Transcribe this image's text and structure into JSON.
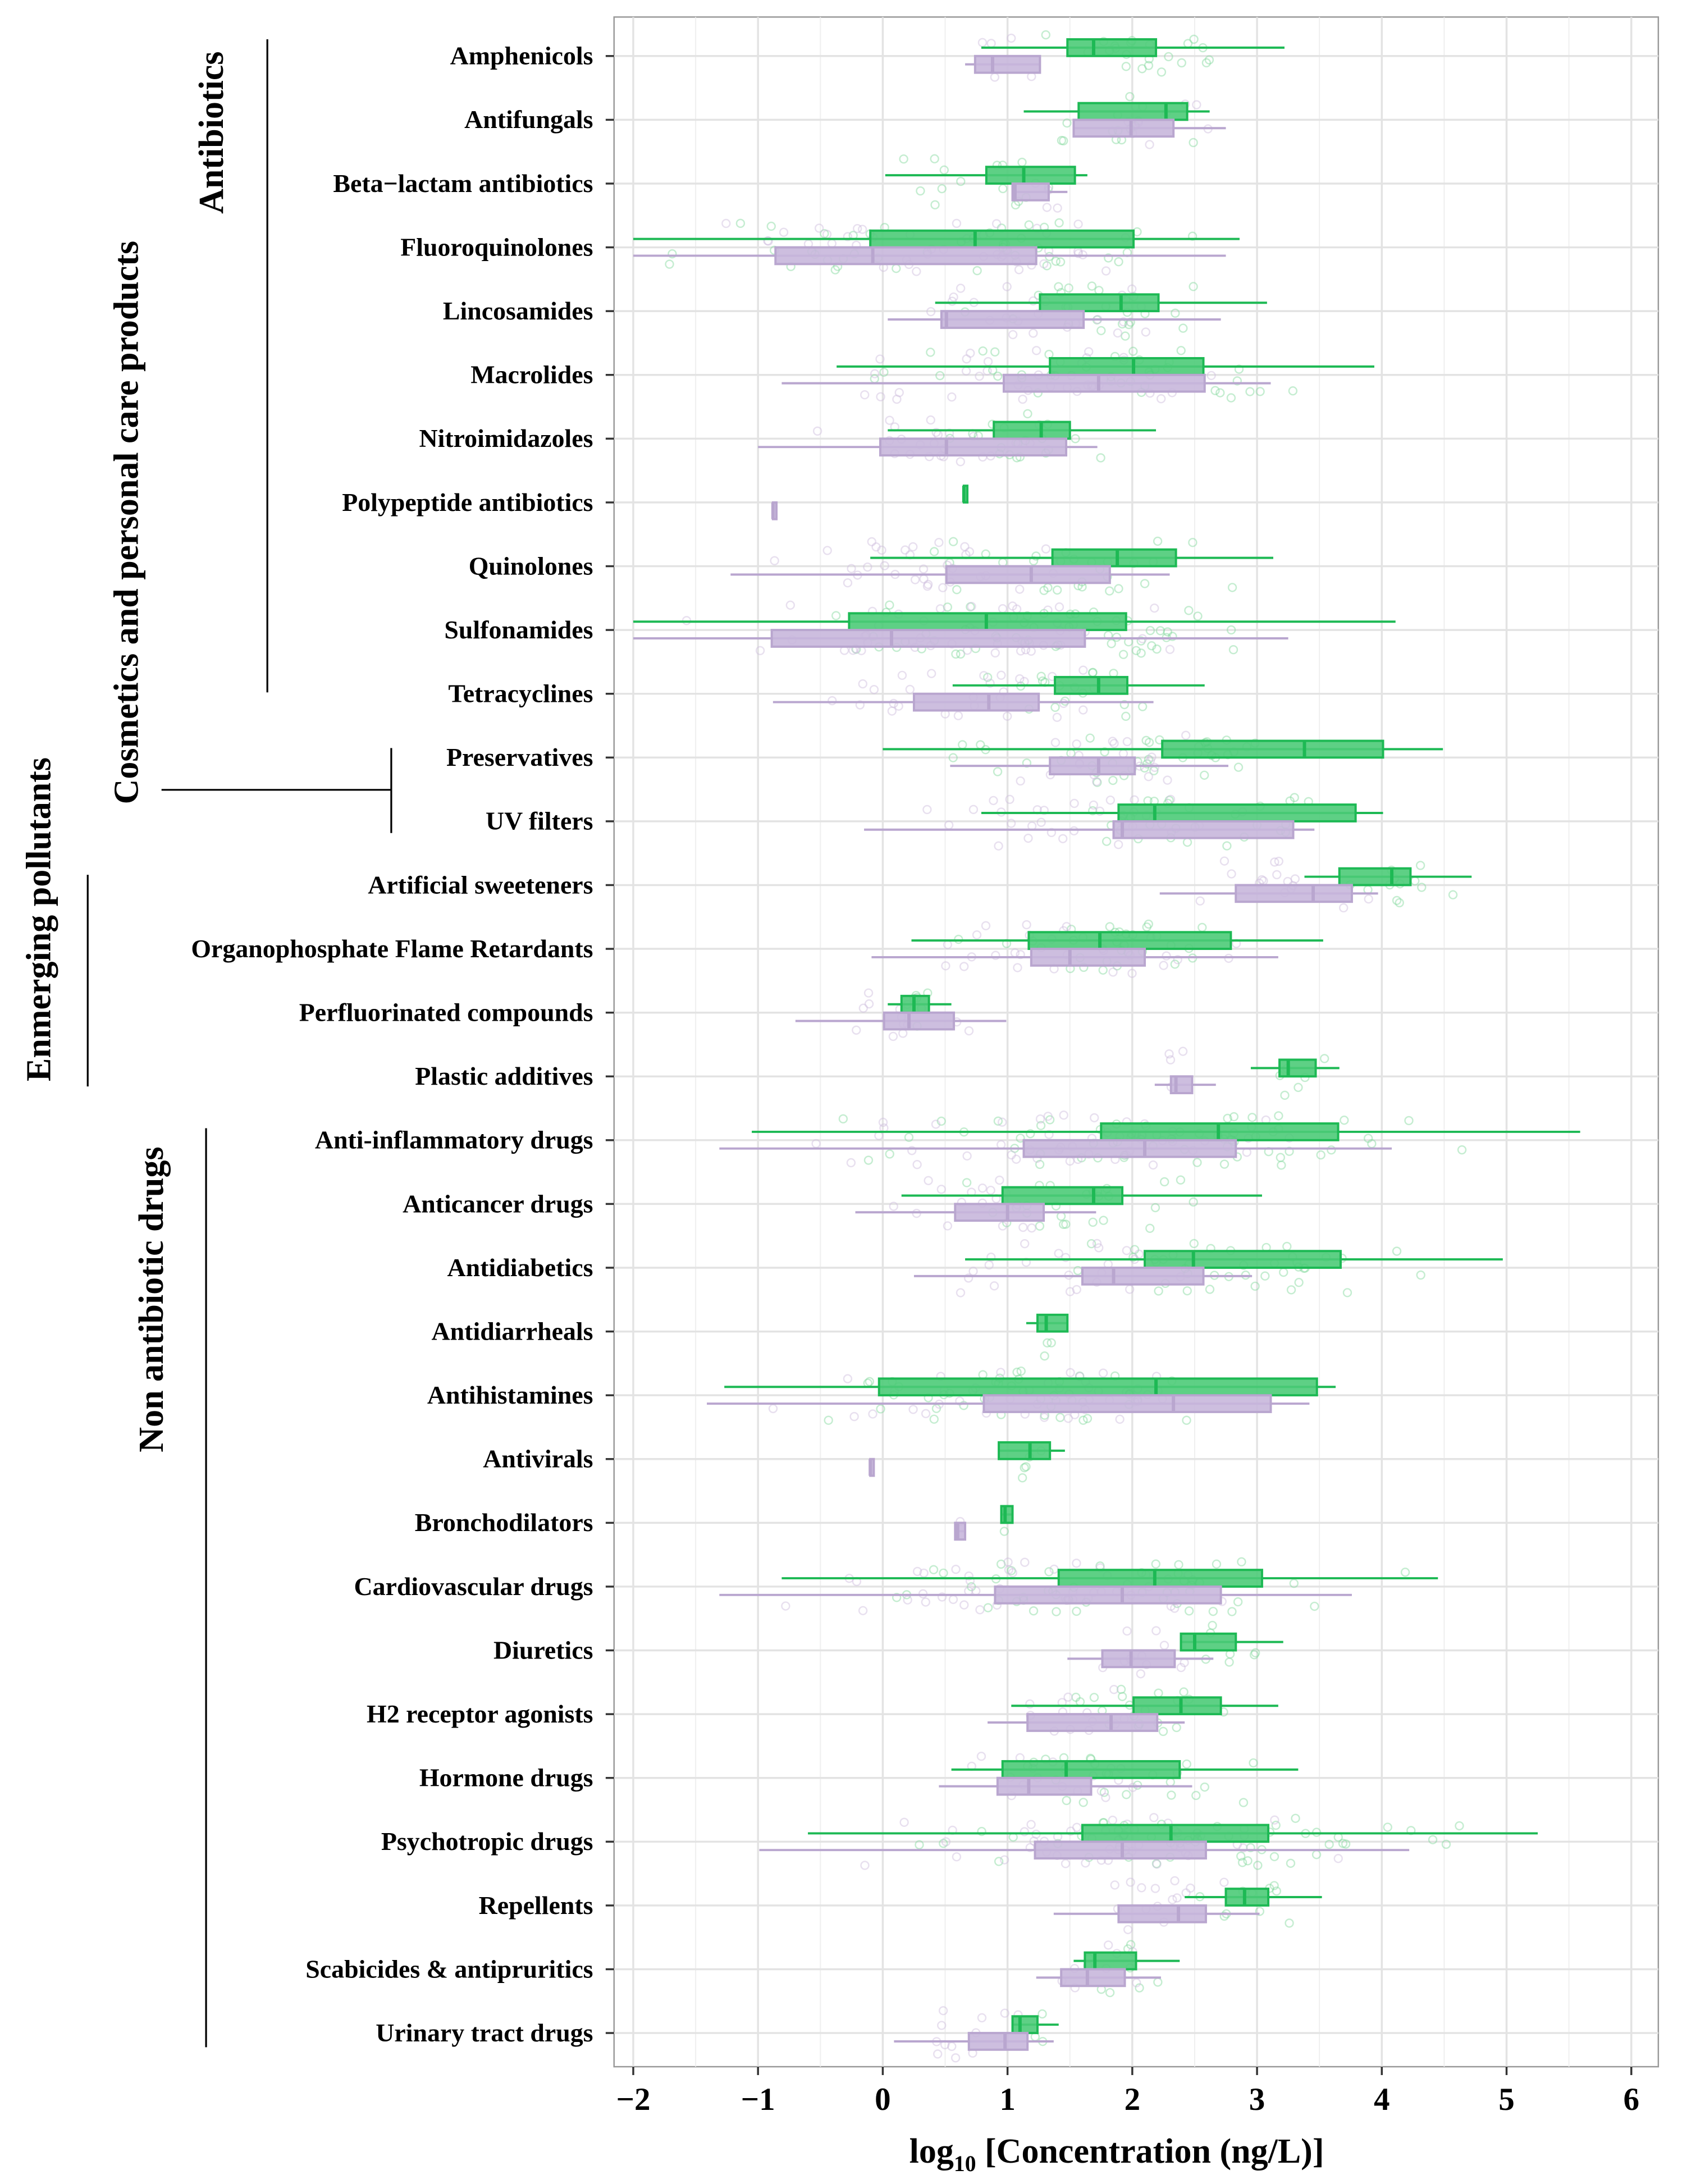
{
  "chart_data": {
    "type": "boxplot",
    "title": "",
    "xlabel": {
      "prefix": "log",
      "subscript": "10",
      "suffix": " [Concentration (ng/L)]"
    },
    "ylabel": "",
    "xlim": [
      -2.15,
      6.2
    ],
    "x_ticks": [
      "-2",
      "-1",
      "0",
      "1",
      "2",
      "3",
      "4",
      "5",
      "6"
    ],
    "x_tick_labels": [
      "−2",
      "−1",
      "0",
      "1",
      "2",
      "3",
      "4",
      "5",
      "6"
    ],
    "grid": true,
    "colors": {
      "green": "#1db954",
      "purple": "#b9a6cf",
      "green_fill": "#4ccb78",
      "purple_fill": "#c8b7dc"
    },
    "groups": [
      {
        "label": "Antibiotics",
        "first": 0,
        "last": 10
      },
      {
        "label": "Cosmetics and personal care products",
        "first": 11,
        "last": 12
      },
      {
        "label": "Enmerging pollutants",
        "first": 13,
        "last": 16
      },
      {
        "label": "Non antibiotic drugs",
        "first": 17,
        "last": 31
      }
    ],
    "categories": [
      {
        "label": "Amphenicols",
        "green": [
          0.79,
          1.48,
          1.69,
          2.19,
          3.22
        ],
        "purple": [
          0.66,
          0.74,
          0.88,
          1.26,
          1.26
        ]
      },
      {
        "label": "Antifungals",
        "green": [
          1.13,
          1.57,
          2.27,
          2.44,
          2.62
        ],
        "purple": [
          1.53,
          1.53,
          1.99,
          2.33,
          2.75
        ]
      },
      {
        "label": "Beta−lactam antibiotics",
        "green": [
          0.02,
          0.83,
          1.13,
          1.54,
          1.64
        ],
        "purple": [
          1.04,
          1.04,
          1.06,
          1.33,
          1.48
        ]
      },
      {
        "label": "Fluoroquinolones",
        "green": [
          -2.0,
          -0.1,
          0.74,
          2.01,
          2.86
        ],
        "purple": [
          -2.0,
          -0.86,
          -0.08,
          1.23,
          2.75
        ]
      },
      {
        "label": "Lincosamides",
        "green": [
          0.42,
          1.26,
          1.91,
          2.21,
          3.08
        ],
        "purple": [
          0.04,
          0.47,
          0.51,
          1.61,
          2.71
        ]
      },
      {
        "label": "Macrolides",
        "green": [
          -0.37,
          1.34,
          2.01,
          2.57,
          3.94
        ],
        "purple": [
          -0.81,
          0.97,
          1.73,
          2.58,
          3.11
        ]
      },
      {
        "label": "Nitroimidazoles",
        "green": [
          0.04,
          0.89,
          1.27,
          1.5,
          2.19
        ],
        "purple": [
          -1.0,
          -0.02,
          0.51,
          1.47,
          1.72
        ]
      },
      {
        "label": "Polypeptide antibiotics",
        "green": [
          0.65,
          0.65,
          0.65,
          0.65,
          0.65
        ],
        "purple": [
          -0.88,
          -0.88,
          -0.88,
          -0.88,
          -0.88
        ]
      },
      {
        "label": "Quinolones",
        "green": [
          -0.1,
          1.36,
          1.88,
          2.35,
          3.13
        ],
        "purple": [
          -1.22,
          0.51,
          1.19,
          1.82,
          2.3
        ]
      },
      {
        "label": "Sulfonamides",
        "green": [
          -2.0,
          -0.27,
          0.83,
          1.95,
          4.11
        ],
        "purple": [
          -2.0,
          -0.89,
          0.07,
          1.62,
          3.25
        ]
      },
      {
        "label": "Tetracyclines",
        "green": [
          0.56,
          1.38,
          1.73,
          1.96,
          2.58
        ],
        "purple": [
          -0.88,
          0.25,
          0.85,
          1.25,
          2.17
        ]
      },
      {
        "label": "Preservatives",
        "green": [
          0.0,
          2.24,
          3.38,
          4.01,
          4.49
        ],
        "purple": [
          0.54,
          1.34,
          1.73,
          2.02,
          2.77
        ]
      },
      {
        "label": "UV filters",
        "green": [
          0.79,
          1.89,
          2.18,
          3.79,
          4.01
        ],
        "purple": [
          -0.15,
          1.85,
          1.92,
          3.29,
          3.46
        ]
      },
      {
        "label": "Artificial sweeteners",
        "green": [
          3.38,
          3.66,
          4.08,
          4.23,
          4.72
        ],
        "purple": [
          2.22,
          2.83,
          3.45,
          3.76,
          3.97
        ]
      },
      {
        "label": "Organophosphate Flame Retardants",
        "green": [
          0.23,
          1.17,
          1.74,
          2.79,
          3.53
        ],
        "purple": [
          -0.09,
          1.19,
          1.5,
          2.1,
          3.17
        ]
      },
      {
        "label": "Perfluorinated compounds",
        "green": [
          0.04,
          0.15,
          0.25,
          0.37,
          0.55
        ],
        "purple": [
          -0.7,
          0.01,
          0.21,
          0.57,
          0.99
        ]
      },
      {
        "label": "Plastic additives",
        "green": [
          2.95,
          3.18,
          3.25,
          3.47,
          3.66
        ],
        "purple": [
          2.18,
          2.31,
          2.35,
          2.48,
          2.67
        ]
      },
      {
        "label": "Anti-inflammatory drugs",
        "green": [
          -1.05,
          1.75,
          2.69,
          3.65,
          5.59
        ],
        "purple": [
          -1.31,
          1.13,
          2.1,
          2.83,
          4.08
        ]
      },
      {
        "label": "Anticancer drugs",
        "green": [
          0.15,
          0.96,
          1.69,
          1.92,
          3.04
        ],
        "purple": [
          -0.22,
          0.58,
          1.0,
          1.29,
          1.71
        ]
      },
      {
        "label": "Antidiabetics",
        "green": [
          0.66,
          2.1,
          2.49,
          3.67,
          4.97
        ],
        "purple": [
          0.25,
          1.6,
          1.85,
          2.57,
          2.96
        ]
      },
      {
        "label": "Antidiarrheals",
        "green": [
          1.15,
          1.24,
          1.31,
          1.48,
          1.48
        ],
        "purple": null
      },
      {
        "label": "Antihistamines",
        "green": [
          -1.27,
          -0.03,
          2.19,
          3.48,
          3.63
        ],
        "purple": [
          -1.41,
          0.81,
          2.33,
          3.11,
          3.42
        ]
      },
      {
        "label": "Antivirals",
        "green": [
          0.93,
          0.93,
          1.18,
          1.34,
          1.46
        ],
        "purple": [
          -0.1,
          -0.1,
          -0.1,
          -0.1,
          -0.1
        ]
      },
      {
        "label": "Bronchodilators",
        "green": [
          0.95,
          0.95,
          0.98,
          1.04,
          1.04
        ],
        "purple": [
          0.58,
          0.58,
          0.6,
          0.66,
          0.66
        ]
      },
      {
        "label": "Cardiovascular drugs",
        "green": [
          -0.81,
          1.41,
          2.18,
          3.04,
          4.45
        ],
        "purple": [
          -1.31,
          0.9,
          1.92,
          2.71,
          3.76
        ]
      },
      {
        "label": "Diuretics",
        "green": [
          2.39,
          2.39,
          2.5,
          2.83,
          3.21
        ],
        "purple": [
          1.48,
          1.76,
          1.99,
          2.34,
          2.65
        ]
      },
      {
        "label": "H2 receptor agonists",
        "green": [
          1.03,
          2.01,
          2.39,
          2.71,
          3.17
        ],
        "purple": [
          0.84,
          1.16,
          1.83,
          2.2,
          2.42
        ]
      },
      {
        "label": "Hormone drugs",
        "green": [
          0.55,
          0.96,
          1.47,
          2.38,
          3.33
        ],
        "purple": [
          0.45,
          0.92,
          1.17,
          1.67,
          2.48
        ]
      },
      {
        "label": "Psychotropic drugs",
        "green": [
          -0.6,
          1.6,
          2.31,
          3.09,
          5.25
        ],
        "purple": [
          -0.99,
          1.22,
          1.92,
          2.59,
          4.22
        ]
      },
      {
        "label": "Repellents",
        "green": [
          2.42,
          2.75,
          2.9,
          3.09,
          3.52
        ],
        "purple": [
          1.37,
          1.89,
          2.37,
          2.59,
          3.02
        ]
      },
      {
        "label": "Scabicides &  antipruritics",
        "green": [
          1.53,
          1.62,
          1.7,
          2.03,
          2.38
        ],
        "purple": [
          1.23,
          1.43,
          1.64,
          1.94,
          2.23
        ]
      },
      {
        "label": "Urinary tract drugs",
        "green": [
          1.04,
          1.04,
          1.1,
          1.24,
          1.41
        ],
        "purple": [
          0.09,
          0.69,
          0.98,
          1.16,
          1.37
        ]
      }
    ]
  }
}
